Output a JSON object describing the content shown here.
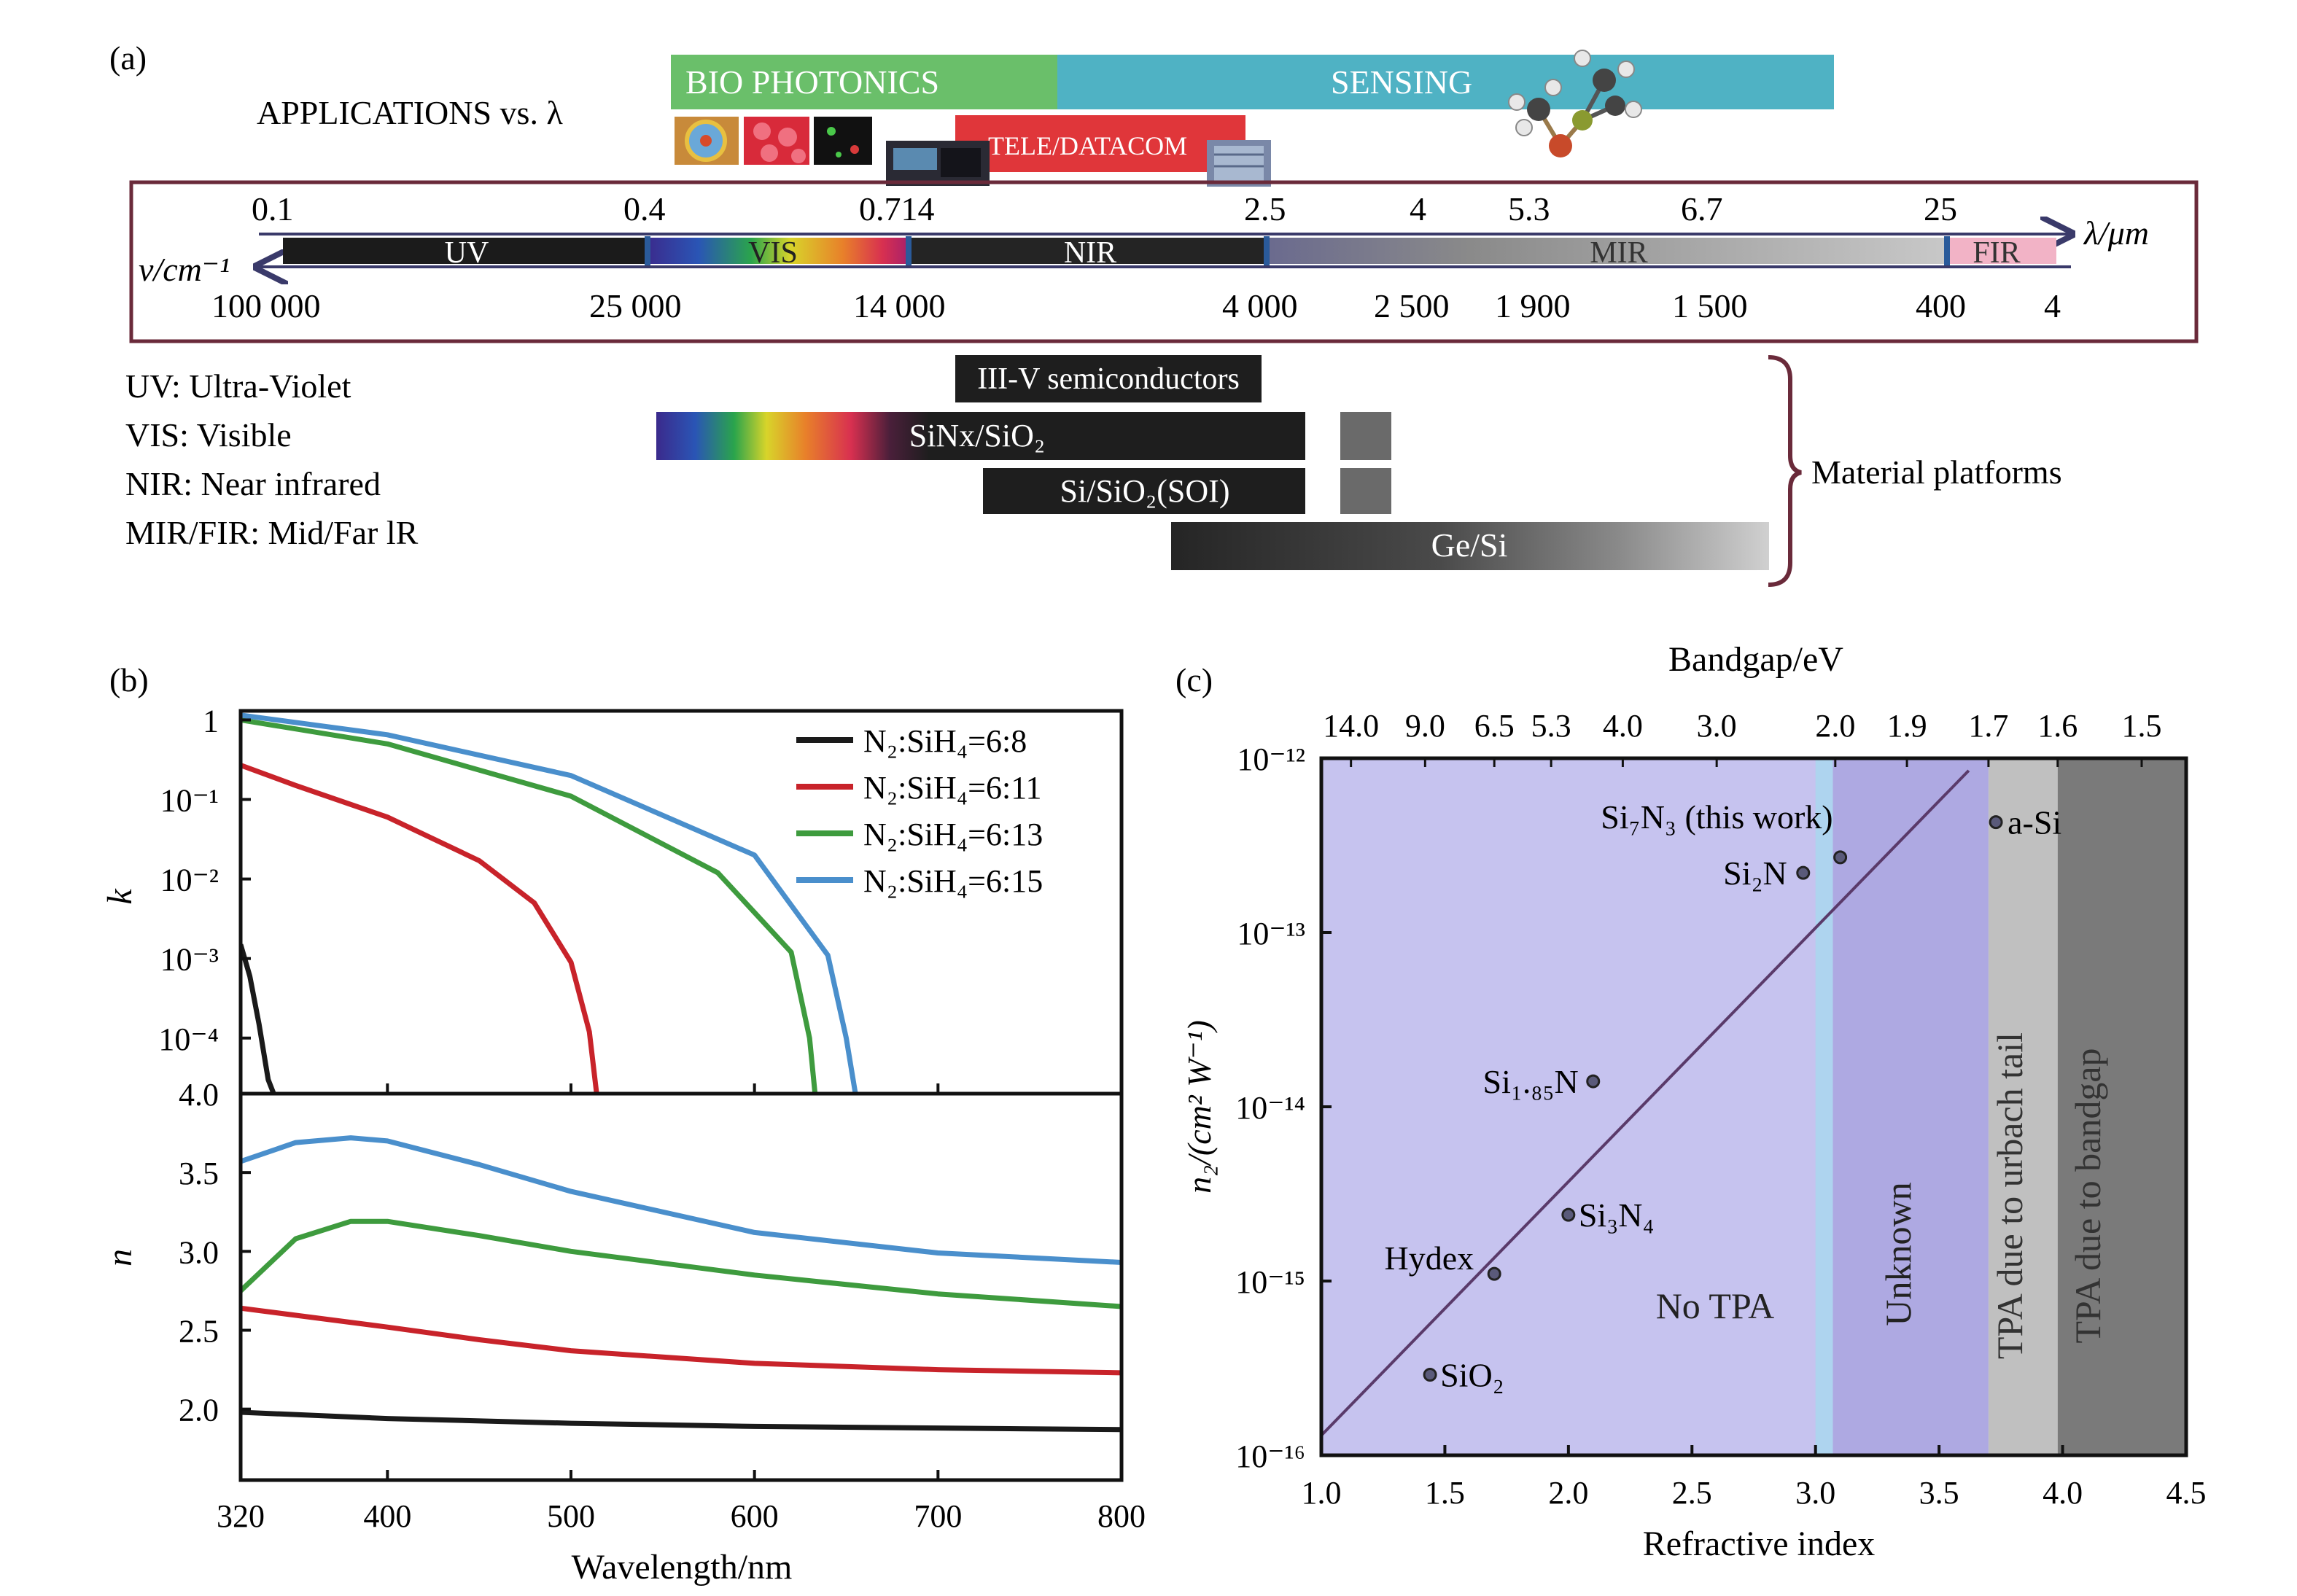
{
  "panel_a": {
    "label": "(a)",
    "applications_label": "APPLICATIONS vs. λ",
    "applications": [
      {
        "name": "BIO PHOTONICS",
        "color": "#6abf6a"
      },
      {
        "name": "SENSING",
        "color": "#4fb2c4"
      },
      {
        "name": "TELE/DATACOM",
        "color": "#e0363a"
      }
    ],
    "spectrum": {
      "lambda_unit": "λ/μm",
      "nu_unit": "ν/cm⁻¹",
      "wavelength_ticks": [
        "0.1",
        "0.4",
        "0.714",
        "2.5",
        "4",
        "5.3",
        "6.7",
        "25"
      ],
      "wavenumber_ticks": [
        "100 000",
        "25 000",
        "14 000",
        "4 000",
        "2 500",
        "1 900",
        "1 500",
        "400",
        "4"
      ],
      "bands": [
        {
          "name": "UV",
          "color": "#1b1b1b"
        },
        {
          "name": "VIS",
          "color": "#5a3fa0"
        },
        {
          "name": "NIR",
          "color": "#242424"
        },
        {
          "name": "MIR",
          "color": "#a8a8a8"
        },
        {
          "name": "FIR",
          "color": "#f2b3c6"
        }
      ]
    },
    "abbreviations": [
      "UV: Ultra-Violet",
      "VIS: Visible",
      "NIR: Near infrared",
      "MIR/FIR: Mid/Far lR"
    ],
    "materials_group_label": "Material platforms",
    "materials": [
      "III-V semiconductors",
      "SiNx/SiO₂",
      "Si/SiO₂(SOI)",
      "Ge/Si"
    ]
  },
  "chart_data": [
    {
      "panel": "(b) upper",
      "label": "(b)",
      "type": "line",
      "xlabel": "",
      "ylabel": "k",
      "yscale": "log",
      "ylim": [
        2e-05,
        1.3
      ],
      "xlim": [
        320,
        800
      ],
      "yticks": [
        "1",
        "10⁻¹",
        "10⁻²",
        "10⁻³",
        "10⁻⁴"
      ],
      "legend_position": "top-right",
      "series": [
        {
          "name": "N₂:SiH₄=6:8",
          "color": "#1a1a1a",
          "x": [
            320,
            325,
            330,
            335,
            338
          ],
          "y": [
            0.0015,
            0.0006,
            0.00015,
            3e-05,
            2e-05
          ]
        },
        {
          "name": "N₂:SiH₄=6:11",
          "color": "#c8232a",
          "x": [
            320,
            350,
            400,
            450,
            480,
            500,
            510,
            514
          ],
          "y": [
            0.27,
            0.15,
            0.06,
            0.017,
            0.005,
            0.0009,
            0.00012,
            2e-05
          ]
        },
        {
          "name": "N₂:SiH₄=6:13",
          "color": "#3e9b3e",
          "x": [
            320,
            400,
            500,
            580,
            620,
            630,
            633
          ],
          "y": [
            1.0,
            0.5,
            0.11,
            0.012,
            0.0012,
            0.0001,
            2e-05
          ]
        },
        {
          "name": "N₂:SiH₄=6:15",
          "color": "#4a8fcc",
          "x": [
            320,
            400,
            500,
            600,
            640,
            650,
            655
          ],
          "y": [
            1.15,
            0.65,
            0.2,
            0.02,
            0.0011,
            0.0001,
            2e-05
          ]
        }
      ]
    },
    {
      "panel": "(b) lower",
      "type": "line",
      "xlabel": "Wavelength/nm",
      "ylabel": "n",
      "xlim": [
        320,
        800
      ],
      "ylim": [
        1.55,
        4.0
      ],
      "xticks": [
        "320",
        "400",
        "500",
        "600",
        "700",
        "800"
      ],
      "yticks": [
        "2.0",
        "2.5",
        "3.0",
        "3.5",
        "4.0"
      ],
      "series": [
        {
          "name": "N₂:SiH₄=6:8",
          "color": "#1a1a1a",
          "x": [
            320,
            400,
            500,
            600,
            700,
            800
          ],
          "y": [
            1.98,
            1.94,
            1.91,
            1.89,
            1.88,
            1.87
          ]
        },
        {
          "name": "N₂:SiH₄=6:11",
          "color": "#c8232a",
          "x": [
            320,
            400,
            450,
            500,
            600,
            700,
            800
          ],
          "y": [
            2.64,
            2.52,
            2.44,
            2.37,
            2.29,
            2.25,
            2.23
          ]
        },
        {
          "name": "N₂:SiH₄=6:13",
          "color": "#3e9b3e",
          "x": [
            320,
            350,
            380,
            400,
            450,
            500,
            600,
            700,
            800
          ],
          "y": [
            2.75,
            3.08,
            3.19,
            3.19,
            3.1,
            3.0,
            2.85,
            2.73,
            2.65
          ]
        },
        {
          "name": "N₂:SiH₄=6:15",
          "color": "#4a8fcc",
          "x": [
            320,
            350,
            380,
            400,
            450,
            500,
            600,
            700,
            800
          ],
          "y": [
            3.57,
            3.69,
            3.72,
            3.7,
            3.55,
            3.38,
            3.12,
            2.99,
            2.93
          ]
        }
      ]
    },
    {
      "panel": "(c)",
      "label": "(c)",
      "type": "scatter",
      "xlabel": "Refractive index",
      "ylabel": "n₂/(cm² W⁻¹)",
      "top_axis_label": "Bandgap/eV",
      "xlim": [
        1.0,
        4.5
      ],
      "ylim": [
        1e-16,
        1e-12
      ],
      "yscale": "log",
      "xticks": [
        "1.0",
        "1.5",
        "2.0",
        "2.5",
        "3.0",
        "3.5",
        "4.0",
        "4.5"
      ],
      "yticks": [
        "10⁻¹⁶",
        "10⁻¹⁵",
        "10⁻¹⁴",
        "10⁻¹³",
        "10⁻¹²"
      ],
      "top_ticks": [
        {
          "label": "14.0",
          "x": 1.12
        },
        {
          "label": "9.0",
          "x": 1.42
        },
        {
          "label": "6.5",
          "x": 1.7
        },
        {
          "label": "5.3",
          "x": 1.93
        },
        {
          "label": "4.0",
          "x": 2.22
        },
        {
          "label": "3.0",
          "x": 2.6
        },
        {
          "label": "2.0",
          "x": 3.08
        },
        {
          "label": "1.9",
          "x": 3.37
        },
        {
          "label": "1.7",
          "x": 3.7
        },
        {
          "label": "1.6",
          "x": 3.98
        },
        {
          "label": "1.5",
          "x": 4.32
        }
      ],
      "regions": [
        {
          "label": "No TPA",
          "x0": 1.0,
          "x1": 3.07,
          "color": "#c6c3ef"
        },
        {
          "label": "Unknown",
          "x0": 3.07,
          "x1": 3.7,
          "color": "#aea9e2"
        },
        {
          "label": "TPA due to urbach tail",
          "x0": 3.7,
          "x1": 3.98,
          "color": "#c0c0c0"
        },
        {
          "label": "TPA due to bandgap",
          "x0": 3.98,
          "x1": 4.5,
          "color": "#7a7a7a"
        }
      ],
      "points": [
        {
          "label": "SiO₂",
          "x": 1.44,
          "y": 2.9e-16
        },
        {
          "label": "Hydex",
          "x": 1.7,
          "y": 1.1e-15
        },
        {
          "label": "Si₃N₄",
          "x": 2.0,
          "y": 2.4e-15
        },
        {
          "label": "Si₁.₈₅N",
          "x": 2.1,
          "y": 1.4e-14
        },
        {
          "label": "Si₂N",
          "x": 2.95,
          "y": 2.2e-13
        },
        {
          "label": "Si₇N₃ (this work)",
          "x": 3.1,
          "y": 2.7e-13
        },
        {
          "label": "a-Si",
          "x": 3.73,
          "y": 4.3e-13
        }
      ],
      "fit_line": {
        "x": [
          1.0,
          3.62
        ],
        "y": [
          1.3e-16,
          8.5e-13
        ]
      }
    }
  ]
}
